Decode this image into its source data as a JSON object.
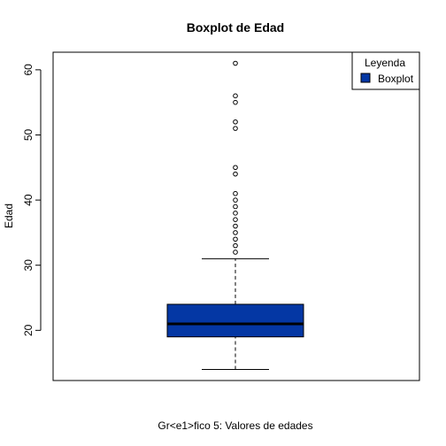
{
  "chart_data": {
    "type": "boxplot",
    "title": "Boxplot de Edad",
    "ylabel": "Edad",
    "xlabel": "Gr<e1>fico 5: Valores de edades",
    "ylim": [
      12.3,
      62.7
    ],
    "yticks": [
      20,
      30,
      40,
      50,
      60
    ],
    "box": {
      "whisker_low": 14,
      "q1": 19,
      "median": 21,
      "q3": 24,
      "whisker_high": 31
    },
    "outliers": [
      32,
      33,
      34,
      35,
      36,
      37,
      38,
      39,
      40,
      41,
      44,
      45,
      51,
      52,
      55,
      56,
      61
    ],
    "box_color": "#0437a4",
    "legend": {
      "title": "Leyenda",
      "position": "top-right",
      "entries": [
        {
          "label": "Boxplot",
          "color": "#0437a4"
        }
      ]
    }
  }
}
